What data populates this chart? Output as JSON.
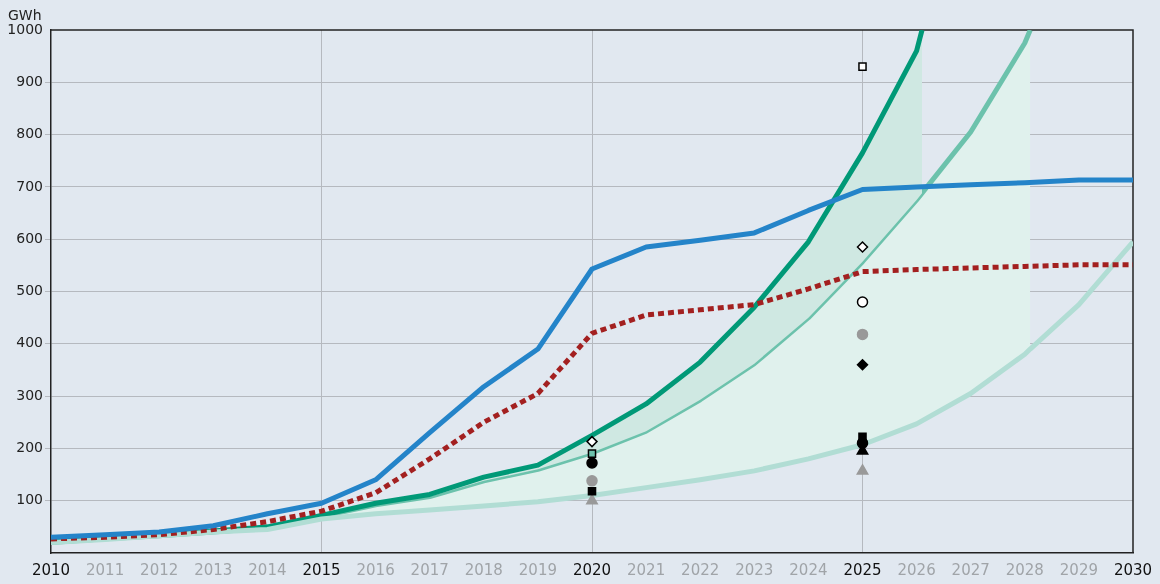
{
  "chart_data": {
    "type": "line",
    "ylabel": "GWh",
    "xlim": [
      2010,
      2030
    ],
    "xticks": [
      2010,
      2011,
      2012,
      2013,
      2014,
      2015,
      2016,
      2017,
      2018,
      2019,
      2020,
      2021,
      2022,
      2023,
      2024,
      2025,
      2026,
      2027,
      2028,
      2029,
      2030
    ],
    "ylim": [
      0,
      1000
    ],
    "yticks": [
      100,
      200,
      300,
      400,
      500,
      600,
      700,
      800,
      900,
      1000
    ],
    "grid": true,
    "legend": false,
    "series": [
      {
        "type": "line",
        "color": "#2484c9",
        "x": [
          2010,
          2011,
          2012,
          2013,
          2014,
          2015,
          2016,
          2017,
          2018,
          2019,
          2020,
          2021,
          2022,
          2023,
          2024,
          2025,
          2026,
          2027,
          2028,
          2029,
          2030
        ],
        "values": [
          30,
          35,
          40,
          52,
          75,
          95,
          140,
          230,
          318,
          390,
          543,
          585,
          598,
          612,
          655,
          695,
          700,
          704,
          708,
          713,
          713
        ]
      },
      {
        "type": "line",
        "color": "#a32020",
        "line_style": "dotted",
        "x": [
          2010,
          2011,
          2012,
          2013,
          2014,
          2015,
          2016,
          2017,
          2018,
          2019,
          2020,
          2021,
          2022,
          2023,
          2024,
          2025,
          2026,
          2027,
          2028,
          2029,
          2030
        ],
        "values": [
          27,
          30,
          35,
          45,
          60,
          80,
          115,
          180,
          250,
          305,
          420,
          455,
          465,
          475,
          505,
          538,
          542,
          545,
          548,
          551,
          551
        ]
      },
      {
        "type": "area",
        "color": "#009977",
        "x": [
          2010,
          2011,
          2012,
          2013,
          2014,
          2015,
          2016,
          2017,
          2018,
          2019,
          2020,
          2021,
          2022,
          2023,
          2024,
          2025,
          2026,
          2026.1
        ],
        "values": [
          22,
          28,
          35,
          42,
          50,
          72,
          95,
          112,
          145,
          168,
          225,
          285,
          365,
          470,
          595,
          765,
          960,
          1000
        ]
      },
      {
        "type": "area",
        "color": "#6cc2ac",
        "x": [
          2010,
          2011,
          2012,
          2013,
          2014,
          2015,
          2016,
          2017,
          2018,
          2019,
          2020,
          2021,
          2022,
          2023,
          2024,
          2025,
          2026,
          2026.1,
          2027,
          2028,
          2028.1
        ],
        "values": [
          20,
          27,
          33,
          40,
          48,
          70,
          92,
          108,
          138,
          160,
          192,
          233,
          293,
          362,
          450,
          557,
          675,
          688,
          805,
          975,
          1000
        ]
      },
      {
        "type": "line",
        "color": "#b1ddd4",
        "x": [
          2010,
          2011,
          2012,
          2013,
          2014,
          2015,
          2016,
          2017,
          2018,
          2019,
          2020,
          2021,
          2022,
          2023,
          2024,
          2025,
          2026,
          2027,
          2028,
          2028.1,
          2029,
          2030
        ],
        "values": [
          20,
          26,
          33,
          40,
          45,
          65,
          75,
          82,
          90,
          98,
          110,
          125,
          140,
          157,
          180,
          207,
          247,
          305,
          380,
          390,
          475,
          595
        ]
      },
      {
        "type": "scatter",
        "marker": "diamond",
        "color": "#ffffff",
        "x": [
          2020,
          2025
        ],
        "values": [
          213,
          585
        ]
      },
      {
        "type": "scatter",
        "marker": "square",
        "color": "#ffffff",
        "x": [
          2025
        ],
        "values": [
          930
        ]
      },
      {
        "type": "scatter",
        "marker": "square",
        "color": "#6cc2ac",
        "x": [
          2020
        ],
        "values": [
          190
        ]
      },
      {
        "type": "scatter",
        "marker": "circle",
        "color": "#ffffff",
        "x": [
          2025
        ],
        "values": [
          480
        ]
      },
      {
        "type": "scatter",
        "marker": "circle",
        "color": "#999999",
        "x": [
          2020,
          2025
        ],
        "values": [
          138,
          418
        ]
      },
      {
        "type": "scatter",
        "marker": "diamond",
        "color": "#000000",
        "x": [
          2025
        ],
        "values": [
          360
        ]
      },
      {
        "type": "scatter",
        "marker": "circle",
        "color": "#000000",
        "x": [
          2020,
          2025
        ],
        "values": [
          172,
          210
        ]
      },
      {
        "type": "scatter",
        "marker": "square",
        "color": "#000000",
        "x": [
          2020,
          2025
        ],
        "values": [
          118,
          222
        ]
      },
      {
        "type": "scatter",
        "marker": "triangle",
        "color": "#000000",
        "x": [
          2025
        ],
        "values": [
          195
        ]
      },
      {
        "type": "scatter",
        "marker": "triangle",
        "color": "#999999",
        "x": [
          2020,
          2025
        ],
        "values": [
          100,
          157
        ]
      }
    ]
  }
}
